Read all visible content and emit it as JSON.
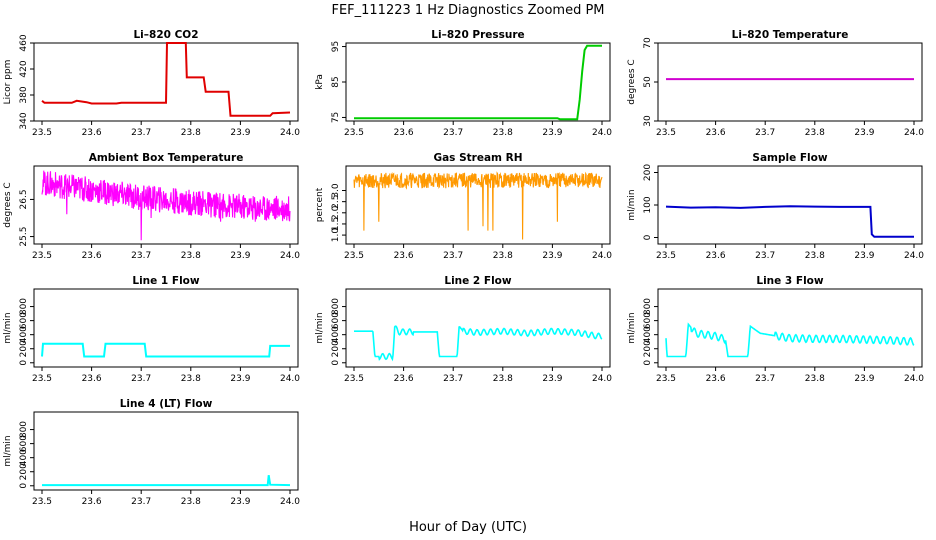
{
  "title": "FEF_111223  1 Hz Diagnostics Zoomed PM",
  "xlabel": "Hour of Day (UTC)",
  "colors": {
    "red": "#ff0000",
    "green": "#00cc00",
    "magenta": "#ff00ff",
    "orange": "#ffa500",
    "blue": "#0000cc",
    "cyan": "#00ffff"
  },
  "x_ticks": [
    "23.5",
    "23.6",
    "23.7",
    "23.8",
    "23.9",
    "24.0"
  ],
  "chart_data": [
    {
      "type": "line",
      "title": "Li–820 CO2",
      "ylabel": "Licor ppm",
      "color": "#e00000",
      "xlim": [
        23.5,
        24.0
      ],
      "ylim": [
        340,
        460
      ],
      "yticks": [
        "340",
        "380",
        "420",
        "460"
      ],
      "points": [
        [
          23.5,
          371
        ],
        [
          23.505,
          368
        ],
        [
          23.56,
          368
        ],
        [
          23.57,
          371
        ],
        [
          23.59,
          369
        ],
        [
          23.6,
          367
        ],
        [
          23.65,
          367
        ],
        [
          23.66,
          368
        ],
        [
          23.75,
          368
        ],
        [
          23.752,
          460
        ],
        [
          23.79,
          460
        ],
        [
          23.792,
          407
        ],
        [
          23.826,
          407
        ],
        [
          23.83,
          385
        ],
        [
          23.876,
          385
        ],
        [
          23.88,
          348
        ],
        [
          23.96,
          348
        ],
        [
          23.965,
          352
        ],
        [
          24.0,
          353
        ]
      ]
    },
    {
      "type": "line",
      "title": "Li–820 Pressure",
      "ylabel": "kPa",
      "color": "#00cc00",
      "xlim": [
        23.5,
        24.0
      ],
      "ylim": [
        74,
        96
      ],
      "yticks": [
        "75",
        "85",
        "95"
      ],
      "points": [
        [
          23.5,
          74.8
        ],
        [
          23.91,
          74.8
        ],
        [
          23.915,
          74.5
        ],
        [
          23.95,
          74.5
        ],
        [
          23.955,
          80
        ],
        [
          23.96,
          88
        ],
        [
          23.965,
          94
        ],
        [
          23.97,
          95.2
        ],
        [
          24.0,
          95.2
        ]
      ]
    },
    {
      "type": "line",
      "title": "Li–820 Temperature",
      "ylabel": "degrees C",
      "color": "#d000d0",
      "xlim": [
        23.5,
        24.0
      ],
      "ylim": [
        30,
        70
      ],
      "yticks": [
        "30",
        "50",
        "70"
      ],
      "points": [
        [
          23.5,
          51.5
        ],
        [
          24.0,
          51.5
        ]
      ]
    },
    {
      "type": "line",
      "title": "Ambient Box Temperature",
      "ylabel": "degrees C",
      "color": "#ff00ff",
      "xlim": [
        23.5,
        24.0
      ],
      "ylim": [
        25.3,
        27.4
      ],
      "yticks": [
        "25.5",
        "26.5"
      ],
      "trend": [
        [
          23.5,
          26.95
        ],
        [
          23.55,
          26.85
        ],
        [
          23.6,
          26.75
        ],
        [
          23.65,
          26.65
        ],
        [
          23.7,
          26.55
        ],
        [
          23.75,
          26.48
        ],
        [
          23.8,
          26.42
        ],
        [
          23.85,
          26.35
        ],
        [
          23.9,
          26.3
        ],
        [
          23.95,
          26.27
        ],
        [
          24.0,
          26.25
        ]
      ],
      "noise": 0.35,
      "spikes": [
        [
          23.55,
          26.1
        ],
        [
          23.7,
          25.4
        ],
        [
          23.72,
          26.0
        ],
        [
          23.86,
          25.9
        ],
        [
          23.93,
          25.9
        ],
        [
          23.95,
          26.0
        ]
      ]
    },
    {
      "type": "line",
      "title": "Gas Stream RH",
      "ylabel": "percent",
      "color": "#ff9900",
      "xlim": [
        23.5,
        24.0
      ],
      "ylim": [
        0.6,
        4.1
      ],
      "yticks": [
        "1.0",
        "1.5",
        "2.0",
        "2.5",
        "3.0"
      ],
      "trend": [
        [
          23.5,
          3.45
        ],
        [
          24.0,
          3.45
        ]
      ],
      "noise": 0.35,
      "spikes": [
        [
          23.52,
          1.2
        ],
        [
          23.55,
          1.6
        ],
        [
          23.73,
          1.2
        ],
        [
          23.76,
          1.4
        ],
        [
          23.77,
          1.2
        ],
        [
          23.78,
          1.2
        ],
        [
          23.84,
          0.8
        ],
        [
          23.91,
          1.6
        ]
      ]
    },
    {
      "type": "line",
      "title": "Sample Flow",
      "ylabel": "ml/min",
      "color": "#0000cc",
      "xlim": [
        23.5,
        24.0
      ],
      "ylim": [
        -20,
        220
      ],
      "yticks": [
        "0",
        "100",
        "200"
      ],
      "points": [
        [
          23.5,
          95
        ],
        [
          23.55,
          92
        ],
        [
          23.6,
          93
        ],
        [
          23.65,
          91
        ],
        [
          23.7,
          94
        ],
        [
          23.75,
          96
        ],
        [
          23.8,
          95
        ],
        [
          23.85,
          94
        ],
        [
          23.912,
          94
        ],
        [
          23.915,
          10
        ],
        [
          23.92,
          2
        ],
        [
          24.0,
          2
        ]
      ]
    },
    {
      "type": "line",
      "title": "Line 1 Flow",
      "ylabel": "ml/min",
      "color": "#00ffff",
      "xlim": [
        23.5,
        24.0
      ],
      "ylim": [
        -60,
        1050
      ],
      "yticks": [
        "0",
        "200",
        "400",
        "600",
        "800"
      ],
      "points": [
        [
          23.5,
          90
        ],
        [
          23.502,
          270
        ],
        [
          23.582,
          270
        ],
        [
          23.585,
          90
        ],
        [
          23.625,
          90
        ],
        [
          23.628,
          270
        ],
        [
          23.707,
          270
        ],
        [
          23.71,
          90
        ],
        [
          23.958,
          90
        ],
        [
          23.96,
          240
        ],
        [
          24.0,
          240
        ]
      ]
    },
    {
      "type": "line",
      "title": "Line 2 Flow",
      "ylabel": "ml/min",
      "color": "#00ffff",
      "xlim": [
        23.5,
        24.0
      ],
      "ylim": [
        -60,
        1050
      ],
      "yticks": [
        "0",
        "200",
        "400",
        "600",
        "800"
      ],
      "points": [
        [
          23.5,
          450
        ],
        [
          23.538,
          450
        ],
        [
          23.542,
          90
        ],
        [
          23.578,
          90
        ],
        [
          23.582,
          500
        ],
        [
          23.59,
          440
        ],
        [
          23.668,
          440
        ],
        [
          23.672,
          90
        ],
        [
          23.708,
          90
        ],
        [
          23.712,
          520
        ],
        [
          23.72,
          450
        ],
        [
          23.75,
          430
        ],
        [
          23.8,
          450
        ],
        [
          23.85,
          420
        ],
        [
          23.9,
          450
        ],
        [
          23.95,
          430
        ],
        [
          23.99,
          380
        ],
        [
          24.0,
          380
        ]
      ],
      "wave": 40
    },
    {
      "type": "line",
      "title": "Line 3 Flow",
      "ylabel": "ml/min",
      "color": "#00ffff",
      "xlim": [
        23.5,
        24.0
      ],
      "ylim": [
        -60,
        1050
      ],
      "yticks": [
        "0",
        "200",
        "400",
        "600",
        "800"
      ],
      "points": [
        [
          23.5,
          350
        ],
        [
          23.502,
          90
        ],
        [
          23.54,
          90
        ],
        [
          23.545,
          550
        ],
        [
          23.56,
          420
        ],
        [
          23.6,
          380
        ],
        [
          23.62,
          330
        ],
        [
          23.625,
          90
        ],
        [
          23.665,
          90
        ],
        [
          23.67,
          520
        ],
        [
          23.69,
          420
        ],
        [
          23.75,
          350
        ],
        [
          23.8,
          340
        ],
        [
          23.85,
          340
        ],
        [
          23.9,
          330
        ],
        [
          23.95,
          320
        ],
        [
          24.0,
          300
        ]
      ],
      "wave": 50
    },
    {
      "type": "line",
      "title": "Line 4 (LT) Flow",
      "ylabel": "ml/min",
      "color": "#00ffff",
      "xlim": [
        23.5,
        24.0
      ],
      "ylim": [
        -60,
        1050
      ],
      "yticks": [
        "0",
        "200",
        "400",
        "600",
        "800"
      ],
      "points": [
        [
          23.5,
          10
        ],
        [
          23.955,
          10
        ],
        [
          23.957,
          150
        ],
        [
          23.96,
          15
        ],
        [
          24.0,
          10
        ]
      ]
    }
  ]
}
